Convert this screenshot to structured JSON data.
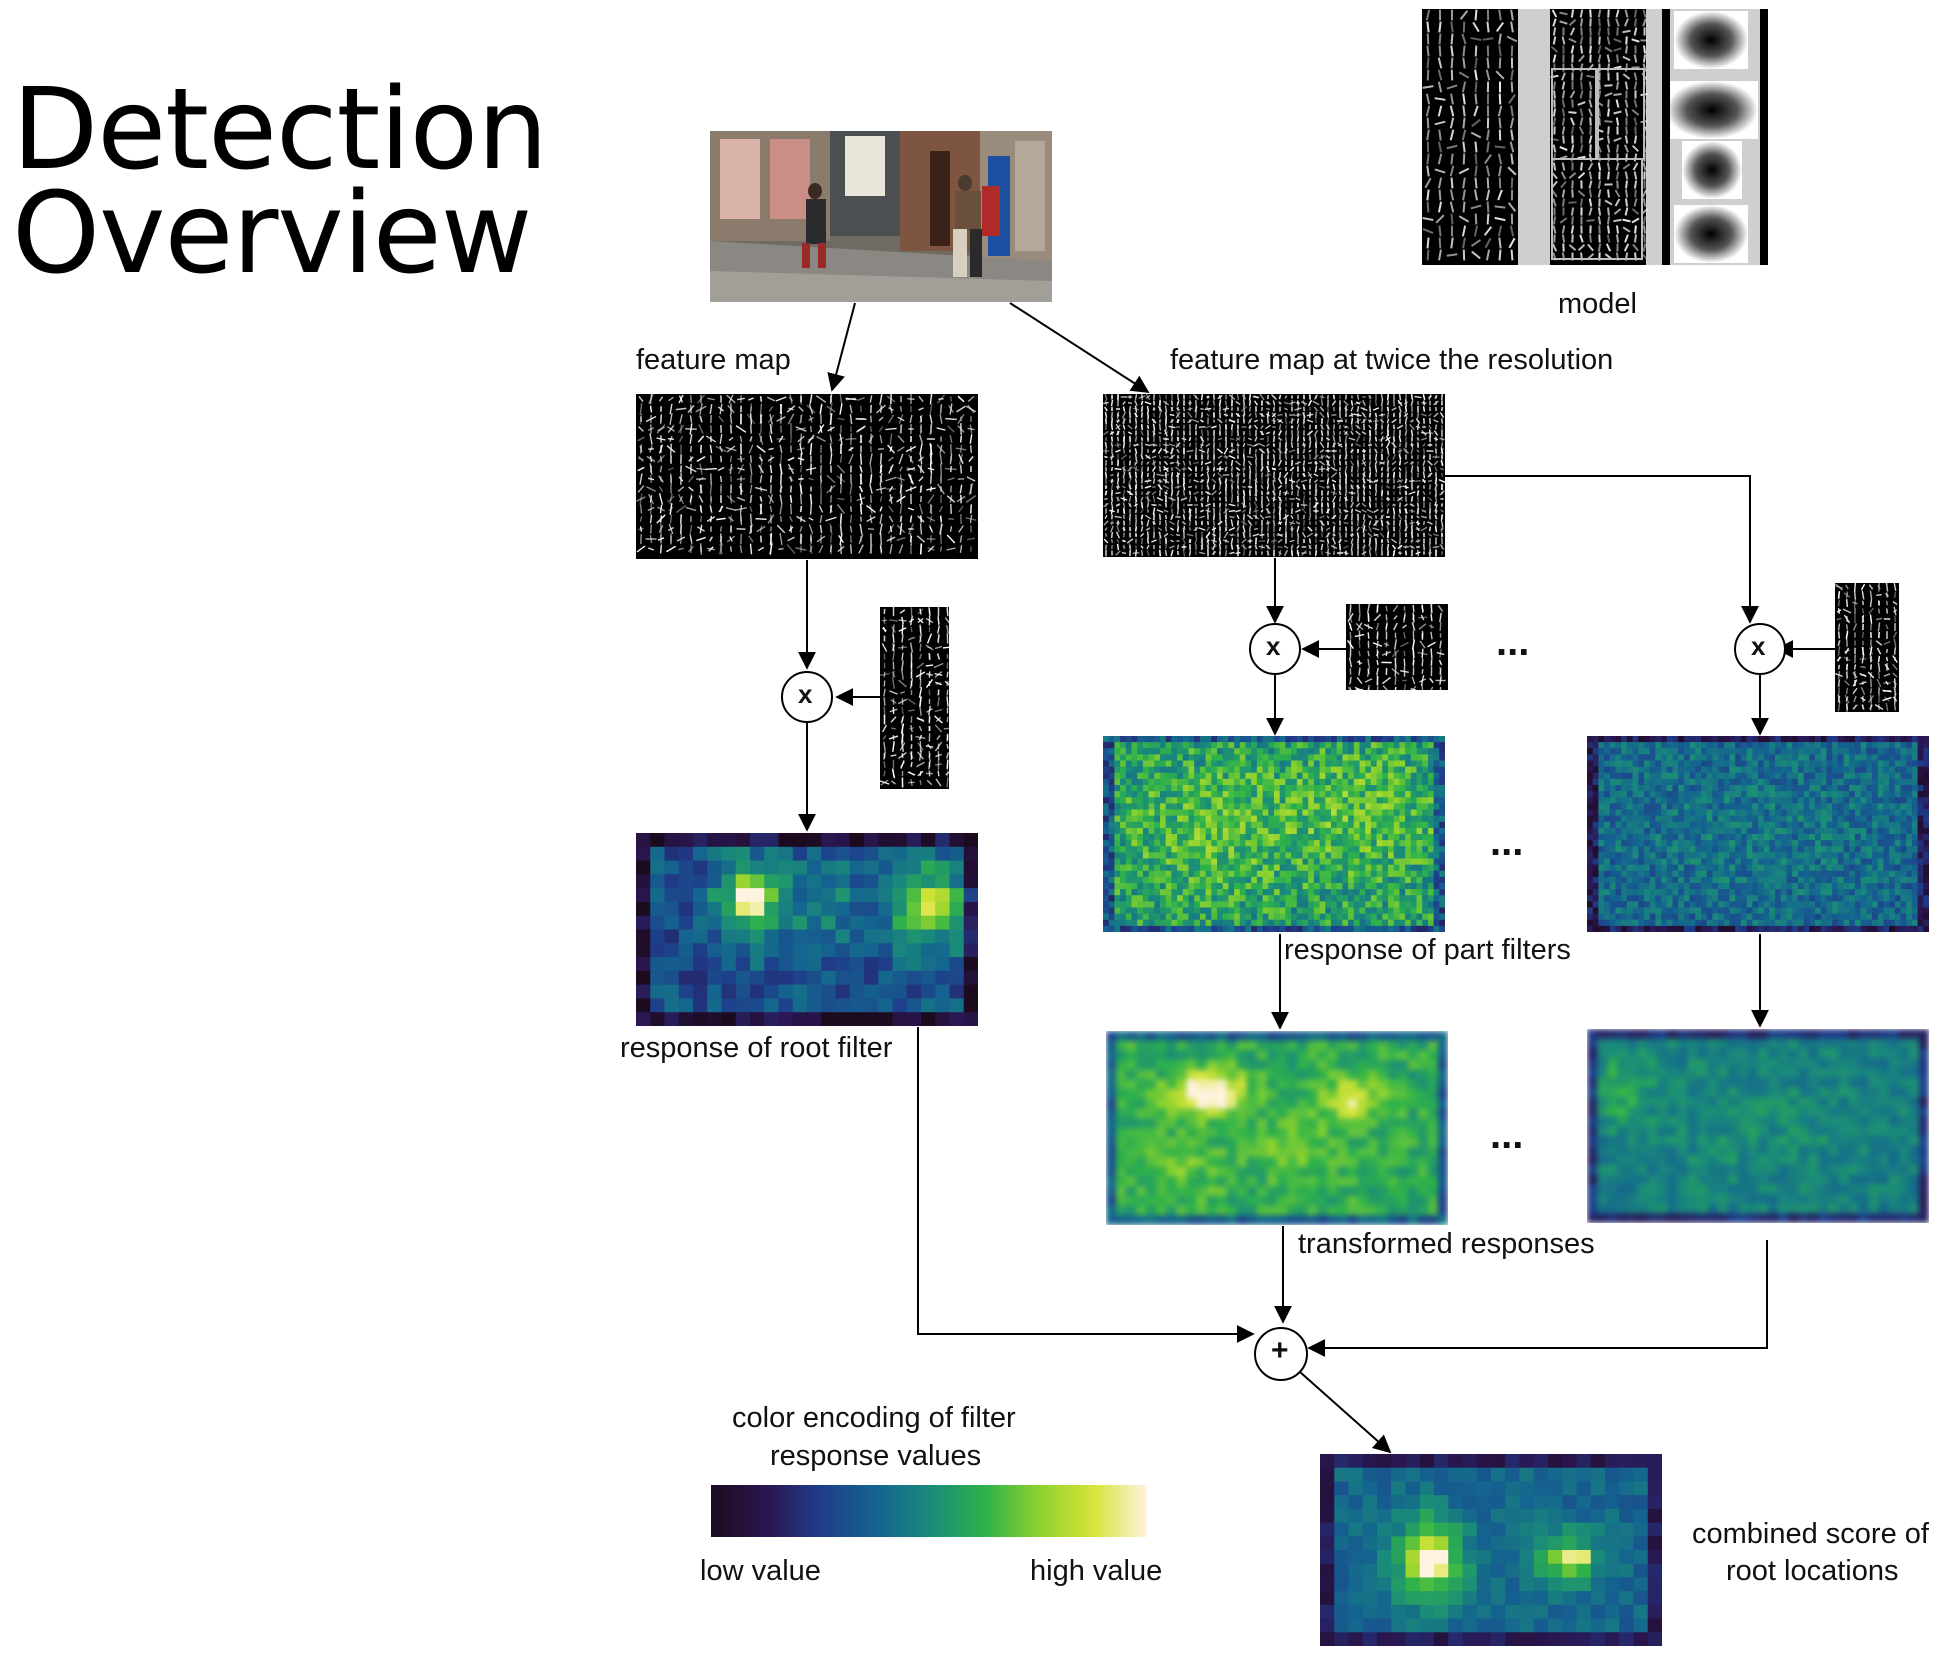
{
  "title": {
    "line1": "Detection",
    "line2": "Overview"
  },
  "labels": {
    "model": "model",
    "feature_map": "feature map",
    "feature_map_twice": "feature map at twice the resolution",
    "response_part_filters": "response of part filters",
    "response_root_filter": "response of root filter",
    "transformed_responses": "transformed responses",
    "combined_score_line1": "combined score of",
    "combined_score_line2": "root locations",
    "color_encoding_line1": "color encoding of filter",
    "color_encoding_line2": "response values",
    "low_value": "low value",
    "high_value": "high value"
  },
  "operators": {
    "multiply": "x",
    "add": "+"
  },
  "ellipsis": "...",
  "colors": {
    "colormap": [
      "#1c0a1e",
      "#2a1650",
      "#1f3d8a",
      "#14648f",
      "#1a8a7a",
      "#2fb24a",
      "#8cd12e",
      "#d8e43a",
      "#fff2df"
    ],
    "arrow": "#000000"
  }
}
